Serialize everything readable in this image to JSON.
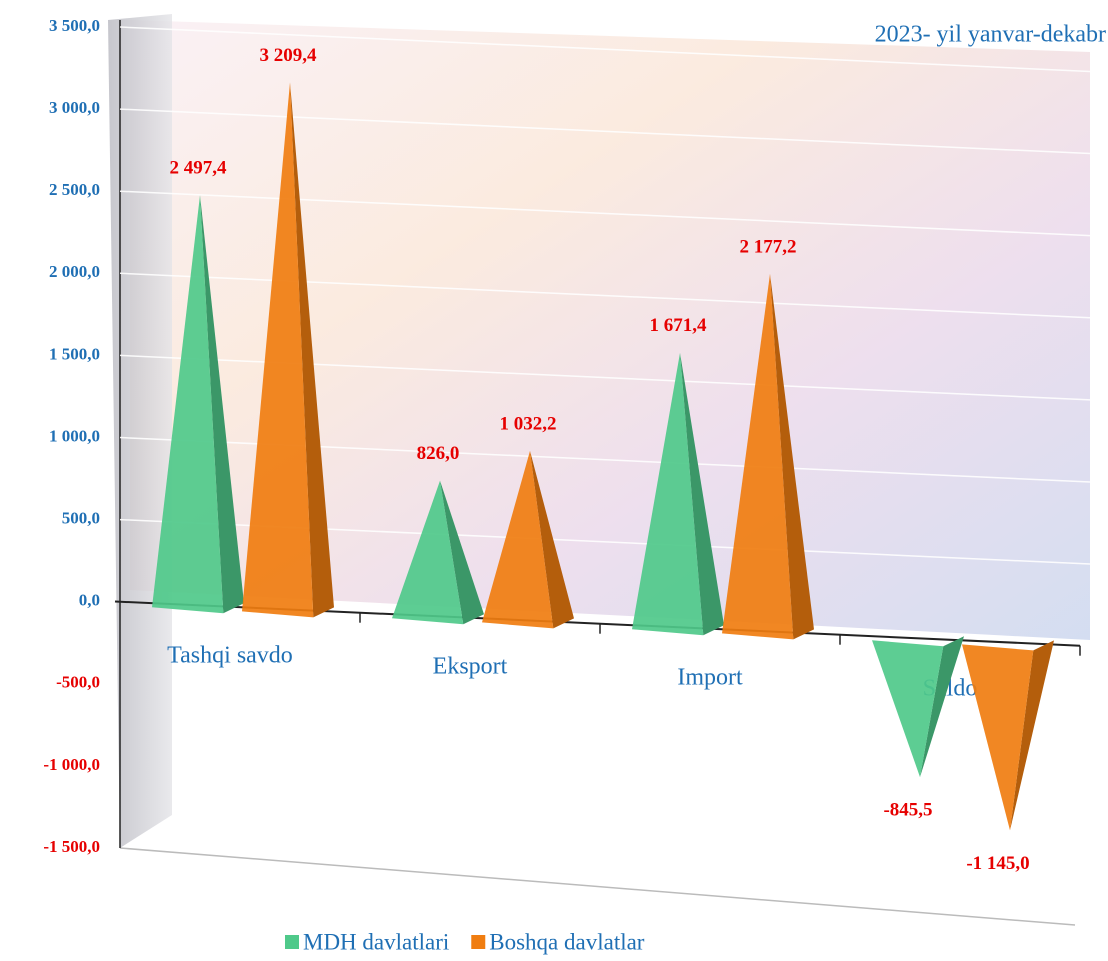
{
  "chart_data": {
    "type": "pyramid-bar",
    "subtitle": "2023- yil yanvar-dekabr",
    "categories": [
      "Tashqi savdo",
      "Eksport",
      "Import",
      "Saldo"
    ],
    "series": [
      {
        "name": "MDH davlatlari",
        "color": "#4fc98a",
        "values": [
          2497.4,
          826.0,
          1671.4,
          -845.5
        ],
        "value_labels": [
          "2 497,4",
          "826,0",
          "1 671,4",
          "-845,5"
        ]
      },
      {
        "name": "Boshqa davlatlar",
        "color": "#f07d10",
        "values": [
          3209.4,
          1032.2,
          2177.2,
          -1145.0
        ],
        "value_labels": [
          "3 209,4",
          "1 032,2",
          "2 177,2",
          "-1 145,0"
        ]
      }
    ],
    "ylim": [
      -1500,
      3500
    ],
    "yticks": [
      {
        "value": -1500,
        "label": "-1 500,0"
      },
      {
        "value": -1000,
        "label": "-1 000,0"
      },
      {
        "value": -500,
        "label": "-500,0"
      },
      {
        "value": 0,
        "label": "0,0"
      },
      {
        "value": 500,
        "label": "500,0"
      },
      {
        "value": 1000,
        "label": "1 000,0"
      },
      {
        "value": 1500,
        "label": "1 500,0"
      },
      {
        "value": 2000,
        "label": "2 000,0"
      },
      {
        "value": 2500,
        "label": "2 500,0"
      },
      {
        "value": 3000,
        "label": "3 000,0"
      },
      {
        "value": 3500,
        "label": "3 500,0"
      }
    ],
    "grid": true
  }
}
